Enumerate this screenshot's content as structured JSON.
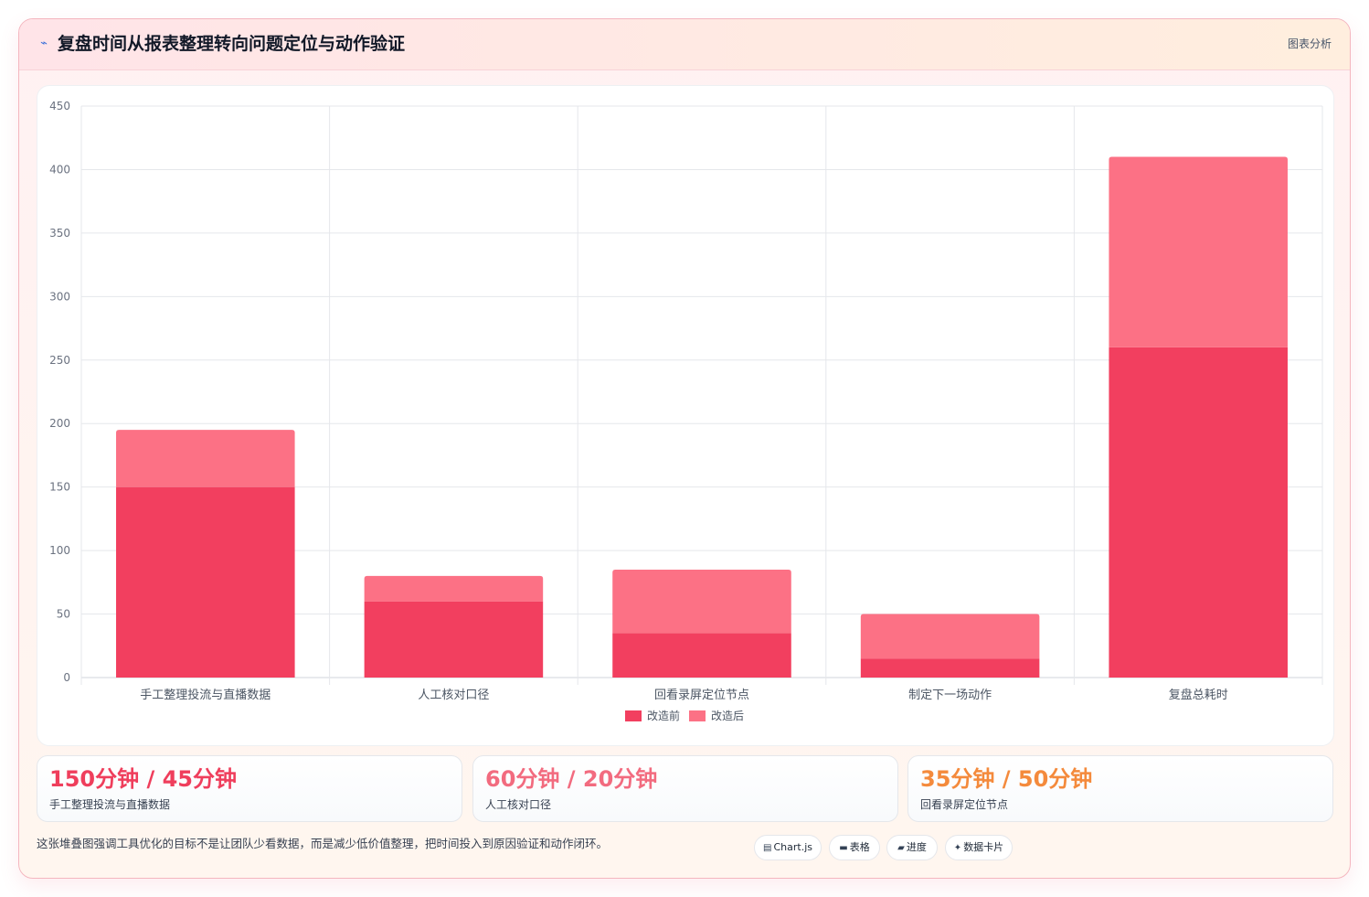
{
  "header": {
    "icon": "lightning-icon",
    "title": "复盘时间从报表整理转向问题定位与动作验证",
    "tag": "图表分析"
  },
  "chart_data": {
    "type": "bar",
    "stacked": true,
    "categories": [
      "手工整理投流与直播数据",
      "人工核对口径",
      "回看录屏定位节点",
      "制定下一场动作",
      "复盘总耗时"
    ],
    "series": [
      {
        "name": "改造前",
        "values": [
          150,
          60,
          35,
          15,
          260
        ],
        "color": "#f23f5f"
      },
      {
        "name": "改造后",
        "values": [
          45,
          20,
          50,
          35,
          150
        ],
        "color": "#fc7185"
      }
    ],
    "ylim": [
      0,
      450
    ],
    "yticks": [
      0,
      50,
      100,
      150,
      200,
      250,
      300,
      350,
      400,
      450
    ],
    "grid": true,
    "legend": "bottom"
  },
  "stats": [
    {
      "value": "150分钟 / 45分钟",
      "label": "手工整理投流与直播数据",
      "color": "#ef3e5c"
    },
    {
      "value": "60分钟 / 20分钟",
      "label": "人工核对口径",
      "color": "#f26b7f"
    },
    {
      "value": "35分钟 / 50分钟",
      "label": "回看录屏定位节点",
      "color": "#f48a3c"
    }
  ],
  "footnote": "这张堆叠图强调工具优化的目标不是让团队少看数据，而是减少低价值整理，把时间投入到原因验证和动作闭环。",
  "chips": [
    {
      "icon": "chart-icon",
      "glyph": "▤",
      "label": "Chart.js"
    },
    {
      "icon": "table-icon",
      "glyph": "▬",
      "label": "表格"
    },
    {
      "icon": "progress-icon",
      "glyph": "▰",
      "label": "进度"
    },
    {
      "icon": "sparkle-icon",
      "glyph": "✦",
      "label": "数据卡片"
    }
  ]
}
